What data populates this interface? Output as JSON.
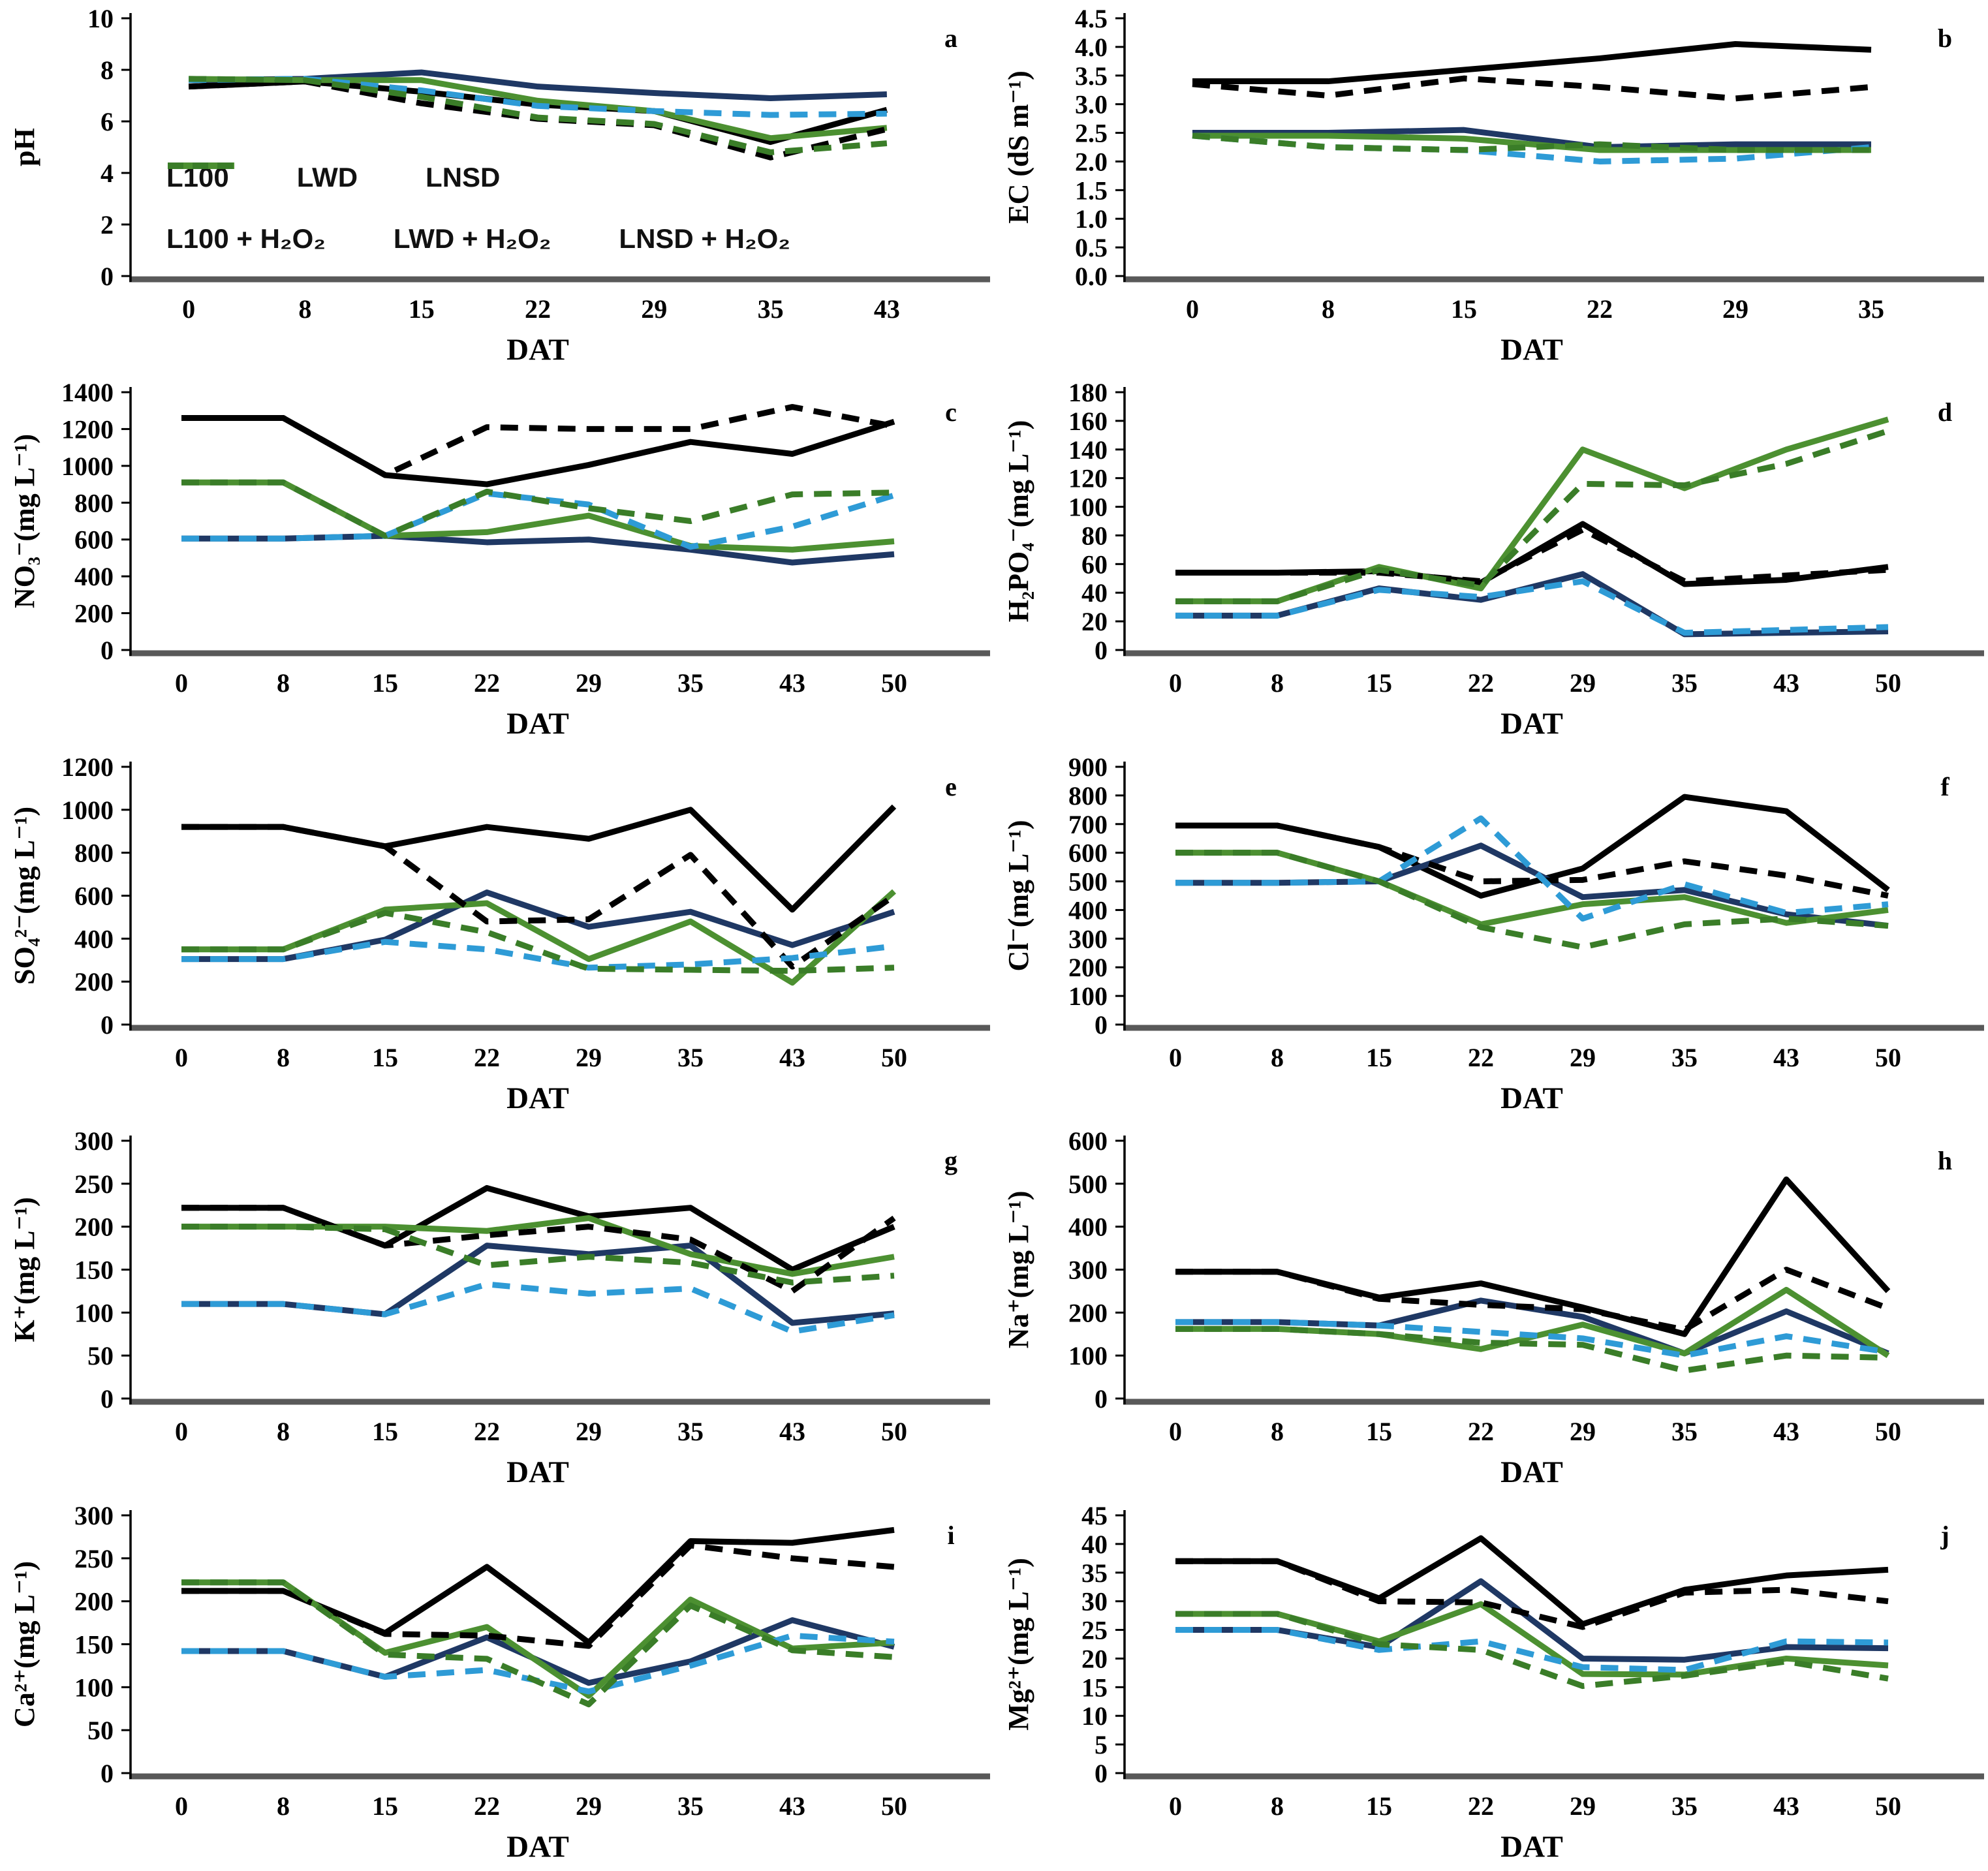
{
  "figure": {
    "xlabel": "DAT"
  },
  "series_styles": [
    {
      "key": "L100",
      "label": "L100",
      "color": "#000000",
      "dashed": false
    },
    {
      "key": "LWD",
      "label": "LWD",
      "color": "#1f3864",
      "dashed": false
    },
    {
      "key": "LNSD",
      "label": "LNSD",
      "color": "#4c9031",
      "dashed": false
    },
    {
      "key": "L100_H2O2",
      "label": "L100 + H₂O₂",
      "color": "#000000",
      "dashed": true
    },
    {
      "key": "LWD_H2O2",
      "label": "LWD + H₂O₂",
      "color": "#2e9bd6",
      "dashed": true
    },
    {
      "key": "LNSD_H2O2",
      "label": "LNSD + H₂O₂",
      "color": "#3a7d28",
      "dashed": true
    }
  ],
  "legend": {
    "rows": [
      [
        "L100",
        "LWD",
        "LNSD"
      ],
      [
        "L100_H2O2",
        "LWD_H2O2",
        "LNSD_H2O2"
      ]
    ]
  },
  "chart_data": [
    {
      "panel": "a",
      "type": "line",
      "ylabel": "pH",
      "xlabel": "DAT",
      "ylim": [
        0,
        10
      ],
      "yticks": [
        0,
        2,
        4,
        6,
        8,
        10
      ],
      "decimals": 0,
      "legend": true,
      "x": [
        0,
        8,
        15,
        22,
        29,
        35,
        43
      ],
      "series": [
        {
          "name": "L100",
          "values": [
            7.35,
            7.55,
            7.15,
            6.65,
            6.4,
            5.2,
            6.45
          ]
        },
        {
          "name": "LWD",
          "values": [
            7.6,
            7.65,
            7.9,
            7.35,
            7.1,
            6.9,
            7.05
          ]
        },
        {
          "name": "LNSD",
          "values": [
            7.65,
            7.6,
            7.6,
            6.8,
            6.4,
            5.35,
            5.75
          ]
        },
        {
          "name": "L100_H2O2",
          "values": [
            7.35,
            7.55,
            6.7,
            6.1,
            5.85,
            4.6,
            5.7
          ]
        },
        {
          "name": "LWD_H2O2",
          "values": [
            7.6,
            7.65,
            7.2,
            6.6,
            6.4,
            6.25,
            6.3
          ]
        },
        {
          "name": "LNSD_H2O2",
          "values": [
            7.65,
            7.6,
            6.95,
            6.15,
            5.9,
            4.8,
            5.15
          ]
        }
      ]
    },
    {
      "panel": "b",
      "type": "line",
      "ylabel": "EC (dS m⁻¹)",
      "xlabel": "DAT",
      "ylim": [
        0,
        4.5
      ],
      "yticks": [
        0,
        0.5,
        1.0,
        1.5,
        2.0,
        2.5,
        3.0,
        3.5,
        4.0,
        4.5
      ],
      "decimals": 1,
      "legend": false,
      "x": [
        0,
        8,
        15,
        22,
        29,
        35
      ],
      "series": [
        {
          "name": "L100",
          "values": [
            3.4,
            3.4,
            3.6,
            3.8,
            4.05,
            3.95
          ]
        },
        {
          "name": "LWD",
          "values": [
            2.5,
            2.5,
            2.55,
            2.25,
            2.3,
            2.3
          ]
        },
        {
          "name": "LNSD",
          "values": [
            2.45,
            2.45,
            2.4,
            2.2,
            2.2,
            2.2
          ]
        },
        {
          "name": "L100_H2O2",
          "values": [
            3.35,
            3.15,
            3.45,
            3.3,
            3.1,
            3.3
          ]
        },
        {
          "name": "LWD_H2O2",
          "values": [
            2.45,
            2.25,
            2.2,
            2.0,
            2.05,
            2.25
          ]
        },
        {
          "name": "LNSD_H2O2",
          "values": [
            2.45,
            2.25,
            2.2,
            2.3,
            2.2,
            2.2
          ]
        }
      ]
    },
    {
      "panel": "c",
      "type": "line",
      "ylabel": "NO₃⁻(mg L⁻¹)",
      "xlabel": "DAT",
      "ylim": [
        0,
        1400
      ],
      "yticks": [
        0,
        200,
        400,
        600,
        800,
        1000,
        1200,
        1400
      ],
      "decimals": 0,
      "legend": false,
      "x": [
        0,
        8,
        15,
        22,
        29,
        35,
        43,
        50
      ],
      "series": [
        {
          "name": "L100",
          "values": [
            1260,
            1260,
            950,
            900,
            1005,
            1130,
            1065,
            1240
          ]
        },
        {
          "name": "LWD",
          "values": [
            605,
            605,
            620,
            585,
            600,
            545,
            475,
            520
          ]
        },
        {
          "name": "LNSD",
          "values": [
            910,
            910,
            620,
            640,
            730,
            565,
            545,
            590
          ]
        },
        {
          "name": "L100_H2O2",
          "values": [
            1260,
            1260,
            950,
            1210,
            1200,
            1200,
            1320,
            1215
          ]
        },
        {
          "name": "LWD_H2O2",
          "values": [
            605,
            605,
            620,
            850,
            790,
            560,
            670,
            840
          ]
        },
        {
          "name": "LNSD_H2O2",
          "values": [
            910,
            910,
            620,
            860,
            770,
            700,
            845,
            855
          ]
        }
      ]
    },
    {
      "panel": "d",
      "type": "line",
      "ylabel": "H₂PO₄⁻(mg L⁻¹)",
      "xlabel": "DAT",
      "ylim": [
        0,
        180
      ],
      "yticks": [
        0,
        20,
        40,
        60,
        80,
        100,
        120,
        140,
        160,
        180
      ],
      "decimals": 0,
      "legend": false,
      "x": [
        0,
        8,
        15,
        22,
        29,
        35,
        43,
        50
      ],
      "series": [
        {
          "name": "L100",
          "values": [
            54,
            54,
            55,
            47,
            88,
            46,
            49,
            58
          ]
        },
        {
          "name": "LWD",
          "values": [
            24,
            24,
            43,
            35,
            53,
            11,
            12,
            13
          ]
        },
        {
          "name": "LNSD",
          "values": [
            34,
            34,
            58,
            43,
            140,
            113,
            140,
            161
          ]
        },
        {
          "name": "L100_H2O2",
          "values": [
            54,
            54,
            54,
            48,
            84,
            48,
            52,
            56
          ]
        },
        {
          "name": "LWD_H2O2",
          "values": [
            24,
            24,
            42,
            37,
            48,
            12,
            14,
            16
          ]
        },
        {
          "name": "LNSD_H2O2",
          "values": [
            34,
            34,
            56,
            45,
            116,
            115,
            130,
            153
          ]
        }
      ]
    },
    {
      "panel": "e",
      "type": "line",
      "ylabel": "SO₄²⁻(mg L⁻¹)",
      "xlabel": "DAT",
      "ylim": [
        0,
        1200
      ],
      "yticks": [
        0,
        200,
        400,
        600,
        800,
        1000,
        1200
      ],
      "decimals": 0,
      "legend": false,
      "x": [
        0,
        8,
        15,
        22,
        29,
        35,
        43,
        50
      ],
      "series": [
        {
          "name": "L100",
          "values": [
            920,
            920,
            830,
            920,
            865,
            1000,
            535,
            1015
          ]
        },
        {
          "name": "LWD",
          "values": [
            305,
            305,
            395,
            615,
            455,
            525,
            370,
            525
          ]
        },
        {
          "name": "LNSD",
          "values": [
            350,
            350,
            535,
            565,
            305,
            480,
            195,
            620
          ]
        },
        {
          "name": "L100_H2O2",
          "values": [
            920,
            920,
            830,
            480,
            490,
            790,
            270,
            600
          ]
        },
        {
          "name": "LWD_H2O2",
          "values": [
            305,
            305,
            385,
            350,
            265,
            280,
            310,
            365
          ]
        },
        {
          "name": "LNSD_H2O2",
          "values": [
            350,
            350,
            520,
            430,
            260,
            255,
            250,
            265
          ]
        }
      ]
    },
    {
      "panel": "f",
      "type": "line",
      "ylabel": "Cl⁻(mg L⁻¹)",
      "xlabel": "DAT",
      "ylim": [
        0,
        900
      ],
      "yticks": [
        0,
        100,
        200,
        300,
        400,
        500,
        600,
        700,
        800,
        900
      ],
      "decimals": 0,
      "legend": false,
      "x": [
        0,
        8,
        15,
        22,
        29,
        35,
        43,
        50
      ],
      "series": [
        {
          "name": "L100",
          "values": [
            695,
            695,
            620,
            450,
            545,
            795,
            745,
            470
          ]
        },
        {
          "name": "LWD",
          "values": [
            495,
            495,
            500,
            625,
            445,
            470,
            385,
            345
          ]
        },
        {
          "name": "LNSD",
          "values": [
            600,
            600,
            500,
            350,
            420,
            445,
            355,
            400
          ]
        },
        {
          "name": "L100_H2O2",
          "values": [
            695,
            695,
            620,
            500,
            505,
            570,
            520,
            450
          ]
        },
        {
          "name": "LWD_H2O2",
          "values": [
            495,
            495,
            500,
            720,
            370,
            490,
            390,
            420
          ]
        },
        {
          "name": "LNSD_H2O2",
          "values": [
            600,
            600,
            500,
            340,
            270,
            350,
            370,
            345
          ]
        }
      ]
    },
    {
      "panel": "g",
      "type": "line",
      "ylabel": "K⁺(mg L⁻¹)",
      "xlabel": "DAT",
      "ylim": [
        0,
        300
      ],
      "yticks": [
        0,
        50,
        100,
        150,
        200,
        250,
        300
      ],
      "decimals": 0,
      "legend": false,
      "x": [
        0,
        8,
        15,
        22,
        29,
        35,
        43,
        50
      ],
      "series": [
        {
          "name": "L100",
          "values": [
            222,
            222,
            178,
            245,
            212,
            222,
            150,
            200
          ]
        },
        {
          "name": "LWD",
          "values": [
            110,
            110,
            98,
            178,
            168,
            178,
            88,
            99
          ]
        },
        {
          "name": "LNSD",
          "values": [
            200,
            200,
            200,
            195,
            210,
            168,
            145,
            165
          ]
        },
        {
          "name": "L100_H2O2",
          "values": [
            222,
            222,
            178,
            190,
            200,
            185,
            125,
            210
          ]
        },
        {
          "name": "LWD_H2O2",
          "values": [
            110,
            110,
            98,
            133,
            122,
            128,
            78,
            97
          ]
        },
        {
          "name": "LNSD_H2O2",
          "values": [
            200,
            200,
            197,
            155,
            165,
            158,
            135,
            143
          ]
        }
      ]
    },
    {
      "panel": "h",
      "type": "line",
      "ylabel": "Na⁺(mg L⁻¹)",
      "xlabel": "DAT",
      "ylim": [
        0,
        600
      ],
      "yticks": [
        0,
        100,
        200,
        300,
        400,
        500,
        600
      ],
      "decimals": 0,
      "legend": false,
      "x": [
        0,
        8,
        15,
        22,
        29,
        35,
        43,
        50
      ],
      "series": [
        {
          "name": "L100",
          "values": [
            295,
            295,
            235,
            268,
            212,
            150,
            510,
            250
          ]
        },
        {
          "name": "LWD",
          "values": [
            178,
            178,
            170,
            228,
            190,
            105,
            203,
            105
          ]
        },
        {
          "name": "LNSD",
          "values": [
            162,
            162,
            150,
            115,
            172,
            105,
            253,
            100
          ]
        },
        {
          "name": "L100_H2O2",
          "values": [
            295,
            295,
            232,
            218,
            208,
            160,
            300,
            210
          ]
        },
        {
          "name": "LWD_H2O2",
          "values": [
            178,
            178,
            170,
            155,
            140,
            100,
            145,
            108
          ]
        },
        {
          "name": "LNSD_H2O2",
          "values": [
            162,
            162,
            150,
            130,
            125,
            65,
            100,
            95
          ]
        }
      ]
    },
    {
      "panel": "i",
      "type": "line",
      "ylabel": "Ca²⁺(mg L⁻¹)",
      "xlabel": "DAT",
      "ylim": [
        0,
        300
      ],
      "yticks": [
        0,
        50,
        100,
        150,
        200,
        250,
        300
      ],
      "decimals": 0,
      "legend": false,
      "x": [
        0,
        8,
        15,
        22,
        29,
        35,
        43,
        50
      ],
      "series": [
        {
          "name": "L100",
          "values": [
            212,
            212,
            163,
            240,
            152,
            270,
            268,
            283
          ]
        },
        {
          "name": "LWD",
          "values": [
            142,
            142,
            112,
            158,
            105,
            130,
            178,
            147
          ]
        },
        {
          "name": "LNSD",
          "values": [
            222,
            222,
            140,
            170,
            90,
            202,
            145,
            152
          ]
        },
        {
          "name": "L100_H2O2",
          "values": [
            212,
            212,
            162,
            160,
            148,
            265,
            250,
            240
          ]
        },
        {
          "name": "LWD_H2O2",
          "values": [
            142,
            142,
            112,
            120,
            95,
            125,
            160,
            153
          ]
        },
        {
          "name": "LNSD_H2O2",
          "values": [
            222,
            222,
            138,
            133,
            80,
            195,
            143,
            135
          ]
        }
      ]
    },
    {
      "panel": "j",
      "type": "line",
      "ylabel": "Mg²⁺(mg L⁻¹)",
      "xlabel": "DAT",
      "ylim": [
        0,
        45
      ],
      "yticks": [
        0,
        5,
        10,
        15,
        20,
        25,
        30,
        35,
        40,
        45
      ],
      "decimals": 0,
      "legend": false,
      "x": [
        0,
        8,
        15,
        22,
        29,
        35,
        43,
        50
      ],
      "series": [
        {
          "name": "L100",
          "values": [
            37,
            37,
            30.5,
            41,
            26,
            32,
            34.5,
            35.5
          ]
        },
        {
          "name": "LWD",
          "values": [
            25,
            25,
            22,
            33.5,
            20,
            19.8,
            22,
            21.8
          ]
        },
        {
          "name": "LNSD",
          "values": [
            27.8,
            27.8,
            23,
            29.5,
            17.3,
            17.2,
            20,
            18.8
          ]
        },
        {
          "name": "L100_H2O2",
          "values": [
            37,
            37,
            30,
            29.8,
            25.5,
            31.5,
            32,
            30
          ]
        },
        {
          "name": "LWD_H2O2",
          "values": [
            25,
            25,
            21.5,
            23,
            18.5,
            18,
            23,
            22.8
          ]
        },
        {
          "name": "LNSD_H2O2",
          "values": [
            27.8,
            27.8,
            22.5,
            21.5,
            15.2,
            17,
            19.5,
            16.5
          ]
        }
      ]
    }
  ]
}
